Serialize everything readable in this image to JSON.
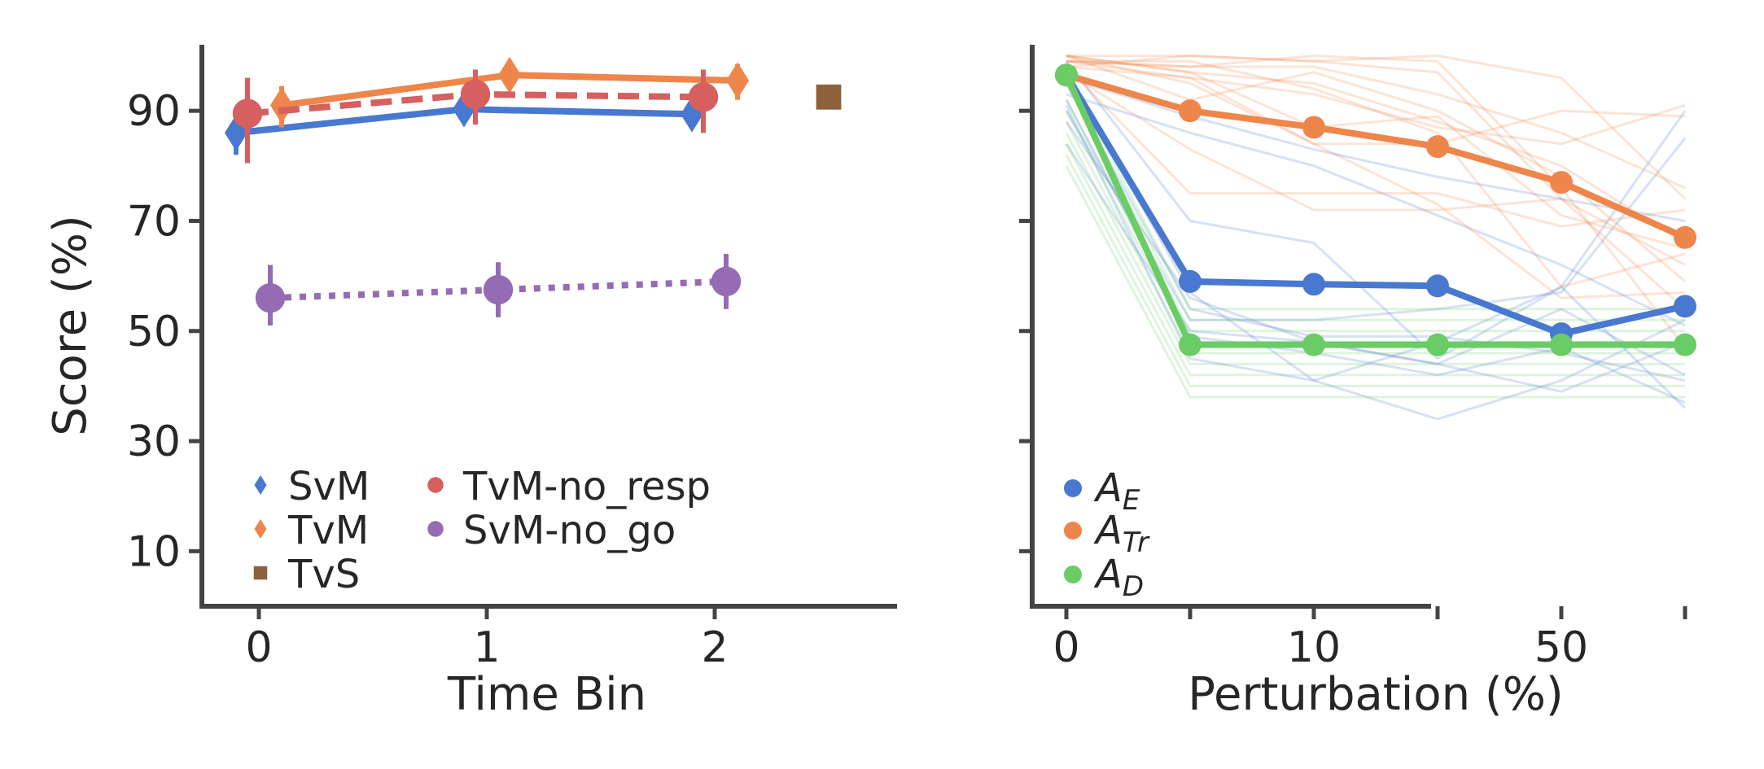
{
  "chart_data": [
    {
      "type": "line",
      "xlabel": "Time Bin",
      "ylabel": "Score (%)",
      "x_ticks": [
        "0",
        "1",
        "2"
      ],
      "y_ticks": [
        "10",
        "30",
        "50",
        "70",
        "90"
      ],
      "ylim": [
        0,
        102
      ],
      "xlim": [
        -0.25,
        2.8
      ],
      "legend_position": "lower-left",
      "grid": false,
      "series": [
        {
          "name": "SvM",
          "marker": "diamond",
          "linestyle": "solid",
          "color": "#4878d0",
          "x": [
            0,
            1,
            2
          ],
          "offset": -0.1,
          "y": [
            86,
            90.3,
            89.4
          ],
          "err": [
            [
              82,
              89.5
            ],
            [
              88.5,
              91.5
            ],
            [
              87,
              91
            ]
          ]
        },
        {
          "name": "TvM",
          "marker": "diamond",
          "linestyle": "solid",
          "color": "#ee854a",
          "x": [
            0,
            1,
            2
          ],
          "offset": 0.1,
          "y": [
            91,
            96.5,
            95.5
          ],
          "err": [
            [
              87,
              94.5
            ],
            [
              94,
              99
            ],
            [
              92,
              98.5
            ]
          ]
        },
        {
          "name": "TvS",
          "marker": "square",
          "linestyle": "none",
          "color": "#8c613c",
          "x": [
            2.5
          ],
          "offset": 0,
          "y": [
            92.5
          ],
          "err": [
            [
              91.5,
              93.5
            ]
          ]
        },
        {
          "name": "TvM-no_resp",
          "marker": "circle",
          "linestyle": "dashed",
          "color": "#d65f5f",
          "x": [
            0,
            1,
            2
          ],
          "offset": -0.05,
          "y": [
            89.5,
            93,
            92.5
          ],
          "err": [
            [
              80.5,
              96
            ],
            [
              87.5,
              97.5
            ],
            [
              86,
              97.5
            ]
          ]
        },
        {
          "name": "SvM-no_go",
          "marker": "circle",
          "linestyle": "dotted",
          "color": "#956cb4",
          "x": [
            0,
            1,
            2
          ],
          "offset": 0.05,
          "y": [
            56,
            57.5,
            59
          ],
          "err": [
            [
              51,
              62
            ],
            [
              52.5,
              62.5
            ],
            [
              54,
              64
            ]
          ]
        }
      ]
    },
    {
      "type": "line",
      "xlabel": "Perturbation (%)",
      "ylabel": "",
      "x_ticks": [
        "0",
        "",
        "10",
        "",
        "50",
        ""
      ],
      "ylim": [
        0,
        102
      ],
      "legend_position": "lower-left",
      "grid": false,
      "series": [
        {
          "name": "A",
          "sub": "E",
          "color": "#4878d0",
          "y": [
            96.5,
            59,
            58.5,
            58.2,
            49.5,
            54.5
          ],
          "faint": [
            [
              96,
              89,
              83,
              78,
              74,
              70
            ],
            [
              93,
              86,
              80,
              71,
              62,
              51
            ],
            [
              99,
              70,
              66,
              45,
              58,
              90
            ],
            [
              88,
              56,
              48,
              44,
              39,
              48
            ],
            [
              90,
              52,
              52,
              54,
              57,
              85
            ],
            [
              84,
              50,
              48,
              44,
              54,
              42
            ],
            [
              95,
              54,
              49,
              49,
              46,
              41
            ],
            [
              92,
              49,
              46,
              42,
              47,
              37
            ],
            [
              97,
              57,
              41,
              48,
              58,
              36
            ],
            [
              91,
              45,
              41,
              34,
              41,
              52
            ]
          ]
        },
        {
          "name": "A",
          "sub": "Tr",
          "color": "#ee854a",
          "y": [
            96.5,
            90,
            87,
            83.5,
            77,
            67
          ],
          "faint": [
            [
              100,
              100,
              99,
              100,
              96,
              74
            ],
            [
              99,
              96,
              93,
              87,
              84,
              91
            ],
            [
              98,
              100,
              99,
              97,
              74,
              62
            ],
            [
              100,
              97,
              87,
              89,
              71,
              65
            ],
            [
              99,
              98,
              98,
              93,
              86,
              76
            ],
            [
              100,
              92,
              97,
              90,
              78,
              59
            ],
            [
              100,
              97,
              95,
              88,
              80,
              66
            ],
            [
              99,
              99,
              94,
              86,
              58,
              64
            ],
            [
              97,
              83,
              72,
              72,
              74,
              54
            ],
            [
              98,
              96,
              84,
              84,
              90,
              89
            ],
            [
              100,
              95,
              84,
              73,
              56,
              57
            ],
            [
              99,
              98,
              100,
              99,
              76,
              47
            ],
            [
              98,
              75,
              75,
              75,
              69,
              72
            ]
          ]
        },
        {
          "name": "A",
          "sub": "D",
          "color": "#6acc64",
          "y": [
            96.5,
            47.5,
            47.5,
            47.5,
            47.5,
            47.5
          ],
          "faint": [
            [
              97,
              54,
              54,
              54,
              54,
              54
            ],
            [
              95,
              52,
              52,
              52,
              52,
              52
            ],
            [
              92,
              50,
              50,
              50,
              50,
              50
            ],
            [
              90,
              48,
              48,
              48,
              48,
              48
            ],
            [
              88,
              46,
              46,
              46,
              46,
              46
            ],
            [
              86,
              44,
              44,
              44,
              44,
              44
            ],
            [
              84,
              42,
              42,
              42,
              42,
              42
            ],
            [
              82,
              40,
              40,
              40,
              40,
              40
            ],
            [
              80,
              38,
              38,
              38,
              38,
              38
            ]
          ]
        }
      ]
    }
  ]
}
